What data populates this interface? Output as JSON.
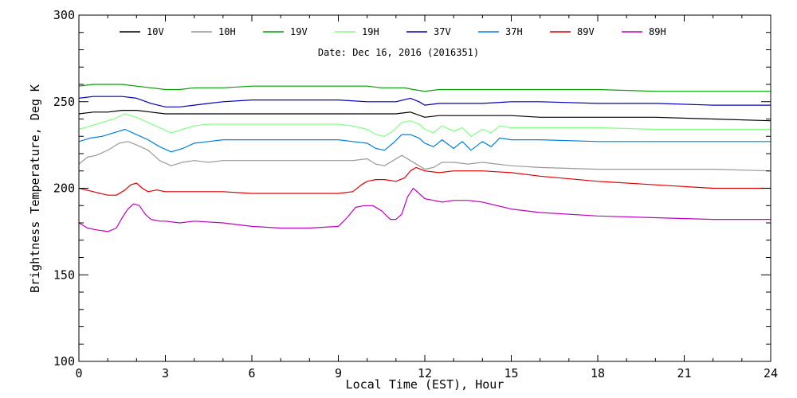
{
  "chart_data": {
    "type": "line",
    "title": "",
    "annotation": "Date: Dec 16, 2016 (2016351)",
    "xlabel": "Local Time (EST), Hour",
    "ylabel": "Brightness Temperature, Deg K",
    "xlim": [
      0,
      24
    ],
    "ylim": [
      100,
      300
    ],
    "xticks": [
      0,
      3,
      6,
      9,
      12,
      15,
      18,
      21,
      24
    ],
    "yticks": [
      100,
      150,
      200,
      250,
      300
    ],
    "grid": false,
    "legend_position": "top",
    "series": [
      {
        "name": "10V",
        "color": "#000000",
        "x": [
          0,
          0.5,
          1,
          1.5,
          2,
          2.5,
          3,
          3.5,
          4,
          5,
          6,
          7,
          8,
          9,
          10,
          10.5,
          11,
          11.5,
          12,
          12.5,
          13,
          14,
          15,
          16,
          18,
          20,
          22,
          24
        ],
        "y": [
          243,
          244,
          244,
          245,
          245,
          244,
          243,
          243,
          243,
          243,
          243,
          243,
          243,
          243,
          243,
          243,
          243,
          244,
          241,
          242,
          242,
          242,
          242,
          241,
          241,
          241,
          240,
          239
        ]
      },
      {
        "name": "10H",
        "color": "#999999",
        "x": [
          0,
          0.3,
          0.6,
          1,
          1.4,
          1.7,
          2,
          2.4,
          2.8,
          3.2,
          3.6,
          4,
          4.5,
          5,
          6,
          7,
          8,
          9,
          9.5,
          10,
          10.3,
          10.6,
          10.9,
          11.2,
          11.5,
          11.8,
          12,
          12.3,
          12.6,
          13,
          13.5,
          14,
          14.5,
          15,
          16,
          18,
          20,
          22,
          24
        ],
        "y": [
          214,
          218,
          219,
          222,
          226,
          227,
          225,
          222,
          216,
          213,
          215,
          216,
          215,
          216,
          216,
          216,
          216,
          216,
          216,
          217,
          214,
          213,
          216,
          219,
          216,
          213,
          211,
          212,
          215,
          215,
          214,
          215,
          214,
          213,
          212,
          211,
          211,
          211,
          210
        ]
      },
      {
        "name": "19V",
        "color": "#00a000",
        "x": [
          0,
          0.5,
          1,
          1.5,
          2,
          2.5,
          3,
          3.5,
          4,
          5,
          6,
          7,
          8,
          9,
          10,
          10.5,
          11,
          11.3,
          11.6,
          12,
          12.5,
          13,
          14,
          15,
          16,
          18,
          20,
          22,
          24
        ],
        "y": [
          259,
          260,
          260,
          260,
          259,
          258,
          257,
          257,
          258,
          258,
          259,
          259,
          259,
          259,
          259,
          258,
          258,
          258,
          257,
          256,
          257,
          257,
          257,
          257,
          257,
          257,
          256,
          256,
          256
        ]
      },
      {
        "name": "19H",
        "color": "#80ff80",
        "x": [
          0,
          0.4,
          0.8,
          1.2,
          1.6,
          2,
          2.4,
          2.8,
          3.2,
          3.6,
          4,
          4.5,
          5,
          6,
          7,
          8,
          9,
          9.5,
          10,
          10.3,
          10.6,
          10.9,
          11.2,
          11.5,
          11.8,
          12,
          12.3,
          12.6,
          13,
          13.3,
          13.6,
          14,
          14.3,
          14.6,
          15,
          16,
          18,
          20,
          22,
          24
        ],
        "y": [
          234,
          236,
          238,
          240,
          243,
          241,
          238,
          235,
          232,
          234,
          236,
          237,
          237,
          237,
          237,
          237,
          237,
          236,
          234,
          231,
          230,
          233,
          238,
          239,
          237,
          234,
          232,
          236,
          233,
          235,
          230,
          234,
          232,
          236,
          235,
          235,
          235,
          234,
          234,
          234
        ]
      },
      {
        "name": "37V",
        "color": "#0000c0",
        "x": [
          0,
          0.5,
          1,
          1.5,
          2,
          2.5,
          3,
          3.5,
          4,
          4.5,
          5,
          6,
          7,
          8,
          9,
          10,
          10.5,
          11,
          11.5,
          11.8,
          12,
          12.5,
          13,
          14,
          15,
          16,
          18,
          20,
          22,
          24
        ],
        "y": [
          252,
          253,
          253,
          253,
          252,
          249,
          247,
          247,
          248,
          249,
          250,
          251,
          251,
          251,
          251,
          250,
          250,
          250,
          252,
          250,
          248,
          249,
          249,
          249,
          250,
          250,
          249,
          249,
          248,
          248
        ]
      },
      {
        "name": "37H",
        "color": "#0080e0",
        "x": [
          0,
          0.4,
          0.8,
          1.2,
          1.6,
          2,
          2.4,
          2.8,
          3.2,
          3.6,
          4,
          4.5,
          5,
          6,
          7,
          8,
          9,
          9.5,
          10,
          10.3,
          10.6,
          10.9,
          11.2,
          11.5,
          11.8,
          12,
          12.3,
          12.6,
          13,
          13.3,
          13.6,
          14,
          14.3,
          14.6,
          15,
          16,
          18,
          20,
          22,
          24
        ],
        "y": [
          227,
          229,
          230,
          232,
          234,
          231,
          228,
          224,
          221,
          223,
          226,
          227,
          228,
          228,
          228,
          228,
          228,
          227,
          226,
          223,
          222,
          226,
          231,
          231,
          229,
          226,
          224,
          228,
          223,
          227,
          222,
          227,
          224,
          229,
          228,
          228,
          227,
          227,
          227,
          227
        ]
      },
      {
        "name": "89V",
        "color": "#e00000",
        "x": [
          0,
          0.5,
          1,
          1.3,
          1.6,
          1.8,
          2,
          2.2,
          2.4,
          2.7,
          3,
          3.5,
          4,
          5,
          6,
          7,
          8,
          9,
          9.5,
          9.8,
          10,
          10.3,
          10.6,
          11,
          11.3,
          11.5,
          11.7,
          12,
          12.5,
          13,
          13.5,
          14,
          15,
          16,
          18,
          20,
          22,
          24
        ],
        "y": [
          200,
          198,
          196,
          196,
          199,
          202,
          203,
          200,
          198,
          199,
          198,
          198,
          198,
          198,
          197,
          197,
          197,
          197,
          198,
          202,
          204,
          205,
          205,
          204,
          206,
          210,
          212,
          210,
          209,
          210,
          210,
          210,
          209,
          207,
          204,
          202,
          200,
          200
        ]
      },
      {
        "name": "89H",
        "color": "#c000c0",
        "x": [
          0,
          0.3,
          0.6,
          1,
          1.3,
          1.5,
          1.7,
          1.9,
          2.1,
          2.3,
          2.5,
          2.8,
          3,
          3.5,
          4,
          5,
          6,
          7,
          8,
          9,
          9.3,
          9.6,
          9.9,
          10.2,
          10.5,
          10.8,
          11,
          11.2,
          11.4,
          11.6,
          11.8,
          12,
          12.3,
          12.6,
          13,
          13.5,
          14,
          15,
          16,
          18,
          20,
          22,
          24
        ],
        "y": [
          180,
          177,
          176,
          175,
          177,
          183,
          188,
          191,
          190,
          185,
          182,
          181,
          181,
          180,
          181,
          180,
          178,
          177,
          177,
          178,
          183,
          189,
          190,
          190,
          187,
          182,
          182,
          185,
          195,
          200,
          197,
          194,
          193,
          192,
          193,
          193,
          192,
          188,
          186,
          184,
          183,
          182,
          182
        ]
      }
    ]
  }
}
